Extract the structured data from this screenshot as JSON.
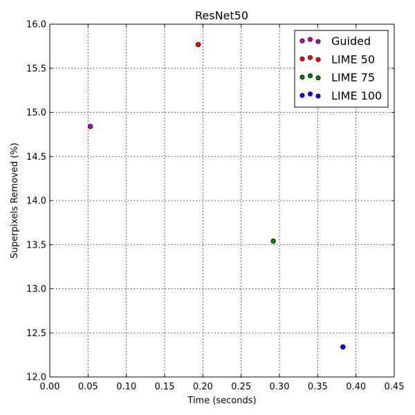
{
  "chart_data": {
    "type": "scatter",
    "title": "ResNet50",
    "xlabel": "Time (seconds)",
    "ylabel": "Superpixels Removed (%)",
    "xlim": [
      0.0,
      0.45
    ],
    "ylim": [
      12.0,
      16.0
    ],
    "xticks": [
      0.0,
      0.05,
      0.1,
      0.15,
      0.2,
      0.25,
      0.3,
      0.35,
      0.4,
      0.45
    ],
    "xtick_labels": [
      "0.00",
      "0.05",
      "0.10",
      "0.15",
      "0.20",
      "0.25",
      "0.30",
      "0.35",
      "0.40",
      "0.45"
    ],
    "yticks": [
      12.0,
      12.5,
      13.0,
      13.5,
      14.0,
      14.5,
      15.0,
      15.5,
      16.0
    ],
    "ytick_labels": [
      "12.0",
      "12.5",
      "13.0",
      "13.5",
      "14.0",
      "14.5",
      "15.0",
      "15.5",
      "16.0"
    ],
    "grid": true,
    "legend_position": "top-right",
    "series": [
      {
        "name": "Guided",
        "color": "#bf00bf",
        "x": [
          0.053
        ],
        "y": [
          14.84
        ]
      },
      {
        "name": "LIME 50",
        "color": "#ff0000",
        "x": [
          0.194
        ],
        "y": [
          15.77
        ]
      },
      {
        "name": "LIME 75",
        "color": "#008000",
        "x": [
          0.292
        ],
        "y": [
          13.54
        ]
      },
      {
        "name": "LIME 100",
        "color": "#0000ff",
        "x": [
          0.383
        ],
        "y": [
          12.34
        ]
      }
    ]
  }
}
